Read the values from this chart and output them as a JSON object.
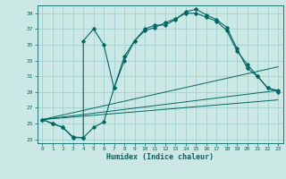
{
  "title": "",
  "xlabel": "Humidex (Indice chaleur)",
  "bg_color": "#cce8e4",
  "grid_color": "#99cccc",
  "line_color": "#006666",
  "xlim": [
    -0.5,
    23.5
  ],
  "ylim": [
    22.5,
    40.0
  ],
  "yticks": [
    23,
    25,
    27,
    29,
    31,
    33,
    35,
    37,
    39
  ],
  "xticks": [
    0,
    1,
    2,
    3,
    4,
    5,
    6,
    7,
    8,
    9,
    10,
    11,
    12,
    13,
    14,
    15,
    16,
    17,
    18,
    19,
    20,
    21,
    22,
    23
  ],
  "curve1_x": [
    0,
    1,
    2,
    3,
    4,
    4,
    5,
    6,
    7,
    8,
    9,
    10,
    11,
    12,
    13,
    14,
    15,
    16,
    17,
    18,
    19,
    20,
    21,
    22,
    23
  ],
  "curve1_y": [
    25.5,
    25.0,
    24.5,
    23.3,
    23.2,
    35.5,
    37.0,
    35.0,
    29.5,
    33.5,
    35.5,
    37.0,
    37.5,
    37.5,
    38.2,
    39.2,
    39.5,
    38.8,
    38.2,
    37.2,
    34.5,
    32.0,
    31.0,
    29.5,
    29.2
  ],
  "curve2_x": [
    0,
    1,
    2,
    3,
    4,
    5,
    6,
    7,
    8,
    9,
    10,
    11,
    12,
    13,
    14,
    15,
    16,
    17,
    18,
    19,
    20,
    21,
    22,
    23
  ],
  "curve2_y": [
    25.5,
    25.0,
    24.5,
    23.2,
    23.2,
    24.5,
    25.2,
    29.5,
    33.0,
    35.5,
    36.8,
    37.2,
    37.8,
    38.3,
    39.0,
    39.0,
    38.5,
    38.0,
    36.8,
    34.2,
    32.5,
    31.0,
    29.5,
    29.0
  ],
  "line1_x": [
    0,
    23
  ],
  "line1_y": [
    25.5,
    32.2
  ],
  "line2_x": [
    0,
    23
  ],
  "line2_y": [
    25.5,
    29.2
  ],
  "line3_x": [
    0,
    23
  ],
  "line3_y": [
    25.5,
    28.0
  ]
}
